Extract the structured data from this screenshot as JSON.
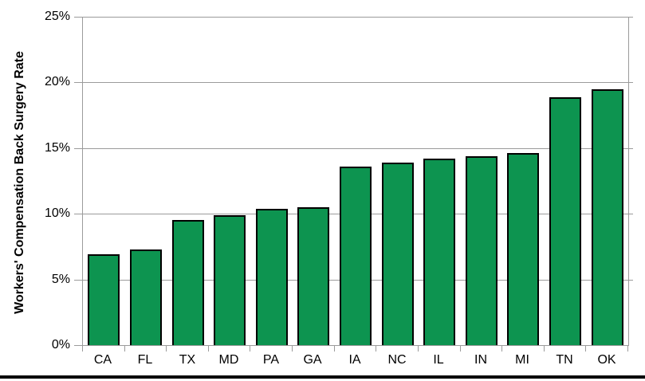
{
  "chart_data": {
    "type": "bar",
    "title": "",
    "xlabel": "",
    "ylabel": "Workers' Compensation Back Surgery Rate",
    "categories": [
      "CA",
      "FL",
      "TX",
      "MD",
      "PA",
      "GA",
      "IA",
      "NC",
      "IL",
      "IN",
      "MI",
      "TN",
      "OK"
    ],
    "values": [
      6.9,
      7.3,
      9.5,
      9.9,
      10.4,
      10.5,
      13.6,
      13.9,
      14.2,
      14.4,
      14.6,
      18.9,
      19.5
    ],
    "unit": "%",
    "ylim": [
      0,
      25
    ],
    "ytick_step": 5,
    "ytick_labels": [
      "0%",
      "5%",
      "10%",
      "15%",
      "20%",
      "25%"
    ],
    "grid": true,
    "legend": "none",
    "colors": {
      "bar_fill": "#0d9450",
      "bar_border": "#000000",
      "axis_and_grid": "#9b9b9b",
      "text": "#000000",
      "bottom_rule": "#000000"
    }
  }
}
